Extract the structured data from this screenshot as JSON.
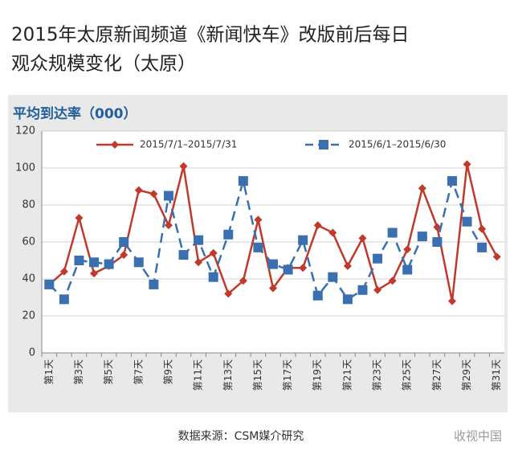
{
  "chart_data": {
    "type": "line",
    "title_line1": "2015年太原新闻频道《新闻快车》改版前后每日",
    "title_line2": "观众规模变化（太原）",
    "y_axis_label": "平均到达率（000）",
    "categories": [
      "第1天",
      null,
      "第3天",
      null,
      "第5天",
      null,
      "第7天",
      null,
      "第9天",
      null,
      "第11天",
      null,
      "第13天",
      null,
      "第15天",
      null,
      "第17天",
      null,
      "第19天",
      null,
      "第21天",
      null,
      "第23天",
      null,
      "第25天",
      null,
      "第27天",
      null,
      "第29天",
      null,
      "第31天"
    ],
    "series": [
      {
        "name": "2015/7/1–2015/7/31",
        "color": "#c0392b",
        "marker": "diamond",
        "dashed": false,
        "values": [
          37,
          44,
          73,
          43,
          47,
          53,
          88,
          86,
          69,
          101,
          49,
          54,
          32,
          39,
          72,
          35,
          46,
          46,
          69,
          65,
          47,
          62,
          34,
          39,
          56,
          89,
          68,
          28,
          102,
          67,
          52
        ]
      },
      {
        "name": "2015/6/1–2015/6/30",
        "color": "#3a6fb0",
        "marker": "square",
        "dashed": true,
        "values": [
          37,
          29,
          50,
          49,
          48,
          60,
          49,
          37,
          85,
          53,
          61,
          41,
          64,
          93,
          57,
          48,
          45,
          61,
          31,
          41,
          29,
          34,
          51,
          65,
          45,
          63,
          60,
          93,
          71,
          57,
          null
        ]
      }
    ],
    "ylim": [
      0,
      120
    ],
    "yticks": [
      0,
      20,
      40,
      60,
      80,
      100,
      120
    ],
    "grid": true,
    "source": "数据来源：CSM媒介研究",
    "watermark": "收视中国"
  }
}
